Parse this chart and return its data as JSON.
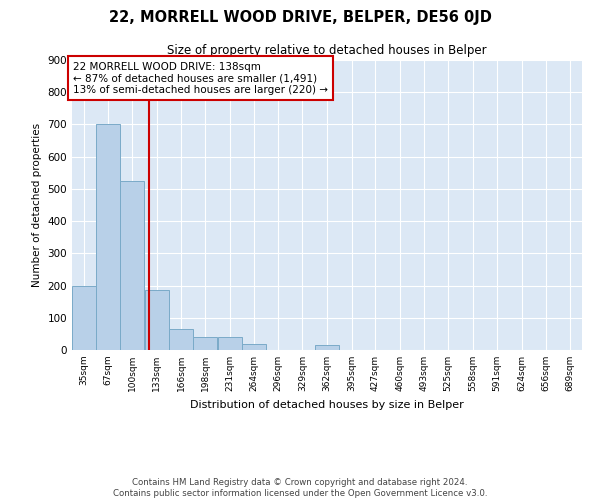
{
  "title": "22, MORRELL WOOD DRIVE, BELPER, DE56 0JD",
  "subtitle": "Size of property relative to detached houses in Belper",
  "xlabel": "Distribution of detached houses by size in Belper",
  "ylabel": "Number of detached properties",
  "bar_color": "#b8d0e8",
  "bar_edge_color": "#7aaac8",
  "background_color": "#dce8f5",
  "grid_color": "#ffffff",
  "property_size": 138,
  "property_line_color": "#cc0000",
  "annotation_text": "22 MORRELL WOOD DRIVE: 138sqm\n← 87% of detached houses are smaller (1,491)\n13% of semi-detached houses are larger (220) →",
  "annotation_box_color": "#cc0000",
  "footnote": "Contains HM Land Registry data © Crown copyright and database right 2024.\nContains public sector information licensed under the Open Government Licence v3.0.",
  "bins": [
    35,
    67,
    100,
    133,
    166,
    198,
    231,
    264,
    296,
    329,
    362,
    395,
    427,
    460,
    493,
    525,
    558,
    591,
    624,
    656,
    689
  ],
  "counts": [
    200,
    700,
    525,
    185,
    65,
    40,
    40,
    20,
    0,
    0,
    15,
    0,
    0,
    0,
    0,
    0,
    0,
    0,
    0,
    0
  ],
  "ylim": [
    0,
    900
  ],
  "yticks": [
    0,
    100,
    200,
    300,
    400,
    500,
    600,
    700,
    800,
    900
  ]
}
